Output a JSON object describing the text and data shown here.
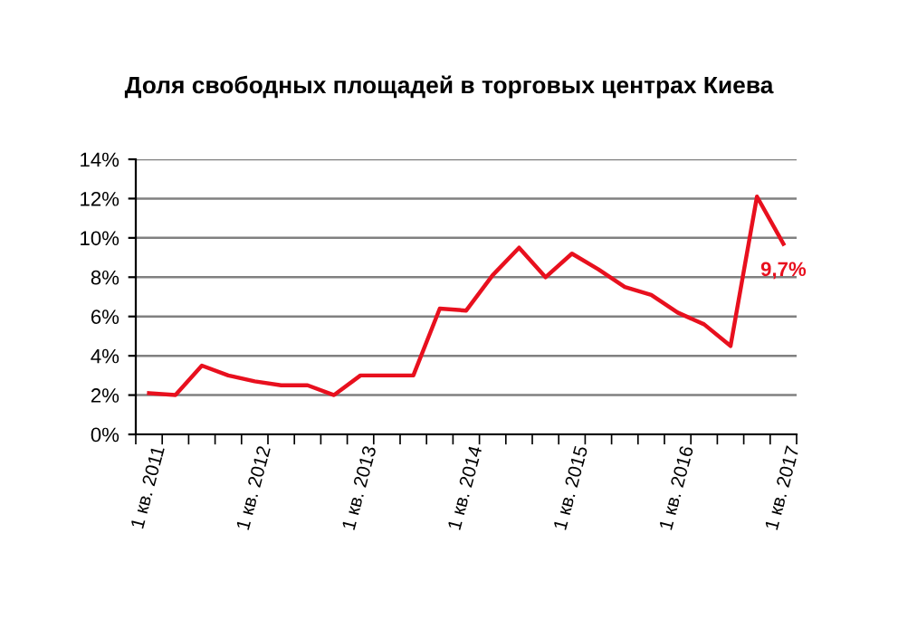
{
  "chart_data": {
    "type": "line",
    "title": "Доля свободных площадей в торговых центрах Киева",
    "categories": [
      "1 кв. 2011",
      null,
      null,
      null,
      "1 кв. 2012",
      null,
      null,
      null,
      "1 кв. 2013",
      null,
      null,
      null,
      "1 кв. 2014",
      null,
      null,
      null,
      "1 кв. 2015",
      null,
      null,
      null,
      "1 кв. 2016",
      null,
      null,
      null,
      "1 кв. 2017"
    ],
    "series": [
      {
        "color": "#e8101e",
        "values": [
          2.1,
          2.0,
          3.5,
          3.0,
          2.7,
          2.5,
          2.5,
          2.0,
          3.0,
          3.0,
          3.0,
          6.4,
          6.3,
          8.1,
          9.5,
          8.0,
          9.2,
          8.4,
          7.5,
          7.1,
          6.2,
          5.6,
          4.5,
          12.1,
          9.7
        ],
        "value_labels": [
          null,
          null,
          null,
          null,
          null,
          null,
          null,
          null,
          null,
          null,
          null,
          null,
          null,
          null,
          null,
          null,
          null,
          null,
          null,
          null,
          null,
          null,
          null,
          null,
          "9,7%"
        ]
      }
    ],
    "ylim": [
      0,
      14
    ],
    "yticks": [
      {
        "value": 0,
        "label": "0%"
      },
      {
        "value": 2,
        "label": "2%"
      },
      {
        "value": 4,
        "label": "4%"
      },
      {
        "value": 6,
        "label": "6%"
      },
      {
        "value": 8,
        "label": "8%"
      },
      {
        "value": 10,
        "label": "10%"
      },
      {
        "value": 12,
        "label": "12%"
      },
      {
        "value": 14,
        "label": "14%"
      }
    ],
    "grid": "y",
    "legend": false,
    "marker": "none",
    "line_style": "solid"
  }
}
